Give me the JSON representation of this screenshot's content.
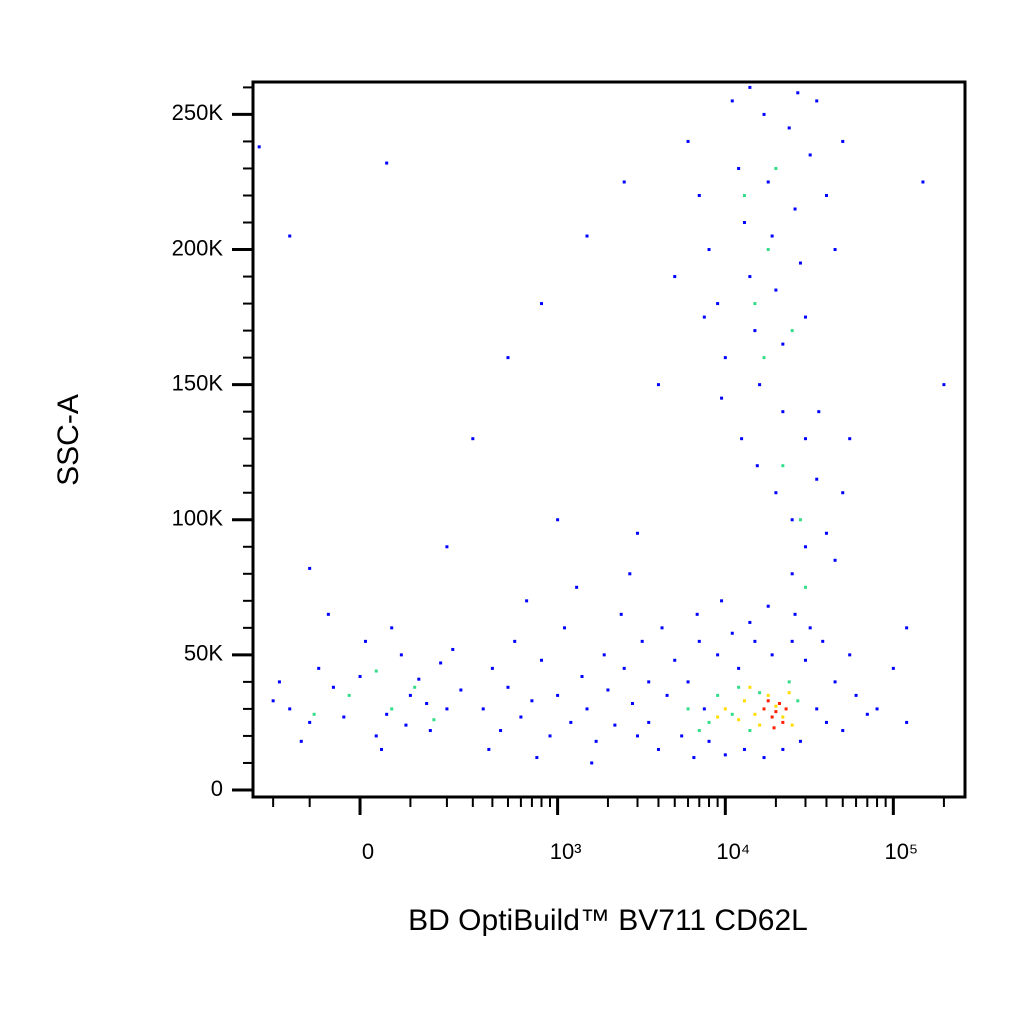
{
  "chart_data": {
    "type": "scatter",
    "x_label": "BD OptiBuild™ BV711 CD62L",
    "y_label": "SSC-A",
    "xscale": "biexponential",
    "xlim": [
      -275,
      267000
    ],
    "ylim": [
      -2600,
      262000
    ],
    "xticks": [
      0,
      {
        "value": 1000,
        "label": "10³"
      },
      {
        "value": 10000,
        "label": "10⁴"
      },
      {
        "value": 100000,
        "label": "10⁵"
      }
    ],
    "xminorticks": [
      -200,
      -100,
      100,
      200,
      300,
      400,
      500,
      600,
      700,
      800,
      900,
      2000,
      3000,
      4000,
      5000,
      6000,
      7000,
      8000,
      9000,
      20000,
      30000,
      40000,
      50000,
      60000,
      70000,
      80000,
      90000,
      200000
    ],
    "yticks": [
      0,
      {
        "value": 50000,
        "label": "50K"
      },
      {
        "value": 100000,
        "label": "100K"
      },
      {
        "value": 150000,
        "label": "150K"
      },
      {
        "value": 200000,
        "label": "200K"
      },
      {
        "value": 250000,
        "label": "250K"
      }
    ],
    "yminorticks": [
      10000,
      20000,
      30000,
      40000,
      60000,
      70000,
      80000,
      90000,
      110000,
      120000,
      130000,
      140000,
      160000,
      170000,
      180000,
      190000,
      210000,
      220000,
      230000,
      240000,
      260000
    ],
    "series": [
      {
        "color": "#0000ff",
        "x": [
          -150,
          -100,
          -50,
          0,
          50,
          100,
          150,
          -200,
          -80,
          30,
          80,
          120,
          200,
          250,
          -120,
          10,
          60,
          180,
          -30,
          90,
          -180,
          140,
          220,
          -60,
          40,
          350,
          400,
          450,
          500,
          550,
          600,
          700,
          800,
          900,
          1000,
          1100,
          1200,
          1400,
          1500,
          1700,
          1900,
          2000,
          2200,
          2500,
          2800,
          3000,
          650,
          1300,
          2400,
          3200,
          380,
          750,
          1600,
          2700,
          3500,
          3500,
          4000,
          4500,
          5000,
          5500,
          6000,
          6500,
          7000,
          7500,
          8000,
          9000,
          10000,
          11000,
          12000,
          13000,
          15000,
          17000,
          19000,
          22000,
          25000,
          28000,
          30000,
          35000,
          40000,
          45000,
          50000,
          60000,
          70000,
          4200,
          6800,
          9500,
          14000,
          18000,
          26000,
          32000,
          55000,
          80000,
          100000,
          120000,
          38000,
          6000,
          7000,
          8000,
          9000,
          10000,
          11000,
          12000,
          13000,
          14000,
          15000,
          16000,
          17000,
          18000,
          19000,
          20000,
          22000,
          24000,
          26000,
          28000,
          30000,
          32000,
          35000,
          40000,
          45000,
          50000,
          7500,
          9500,
          12500,
          15500,
          20000,
          25000,
          30000,
          35000,
          40000,
          45000,
          25000,
          30000,
          22000,
          36000,
          50000,
          55000,
          5000,
          4000,
          14000,
          27000,
          -250,
          -150,
          50,
          300,
          500,
          800,
          1500,
          2500,
          3000,
          -100,
          200,
          1000,
          150000,
          200000,
          120000
        ],
        "values": [
          30000,
          25000,
          38000,
          42000,
          28000,
          35000,
          22000,
          33000,
          45000,
          20000,
          50000,
          41000,
          30000,
          37000,
          18000,
          55000,
          60000,
          47000,
          27000,
          24000,
          40000,
          32000,
          52000,
          65000,
          15000,
          30000,
          45000,
          22000,
          38000,
          55000,
          27000,
          33000,
          48000,
          20000,
          35000,
          60000,
          25000,
          42000,
          30000,
          18000,
          50000,
          37000,
          24000,
          45000,
          32000,
          20000,
          70000,
          75000,
          65000,
          55000,
          15000,
          12000,
          10000,
          80000,
          40000,
          25000,
          15000,
          35000,
          48000,
          20000,
          40000,
          12000,
          55000,
          30000,
          18000,
          50000,
          13000,
          58000,
          45000,
          15000,
          55000,
          12000,
          50000,
          15000,
          55000,
          18000,
          48000,
          30000,
          25000,
          40000,
          22000,
          35000,
          28000,
          60000,
          65000,
          70000,
          62000,
          68000,
          65000,
          60000,
          50000,
          30000,
          45000,
          25000,
          55000,
          240000,
          220000,
          200000,
          180000,
          160000,
          255000,
          230000,
          210000,
          190000,
          170000,
          150000,
          250000,
          225000,
          205000,
          185000,
          165000,
          245000,
          215000,
          195000,
          175000,
          235000,
          255000,
          220000,
          200000,
          240000,
          175000,
          145000,
          130000,
          120000,
          110000,
          100000,
          130000,
          115000,
          95000,
          85000,
          80000,
          90000,
          140000,
          140000,
          110000,
          130000,
          190000,
          150000,
          260000,
          258000,
          238000,
          205000,
          232000,
          130000,
          160000,
          180000,
          205000,
          225000,
          95000,
          82000,
          90000,
          100000,
          225000,
          150000,
          60000
        ]
      },
      {
        "color": "#33dd88",
        "x": [
          -20,
          60,
          110,
          -90,
          30,
          160,
          6000,
          8000,
          9000,
          11000,
          12000,
          14000,
          16000,
          24000,
          27000,
          7000,
          13000,
          15000,
          18000,
          20000,
          25000,
          17000,
          28000,
          30000,
          22000
        ],
        "values": [
          35000,
          30000,
          38000,
          28000,
          44000,
          26000,
          30000,
          25000,
          35000,
          28000,
          38000,
          22000,
          36000,
          40000,
          33000,
          22000,
          220000,
          180000,
          200000,
          230000,
          170000,
          160000,
          100000,
          75000,
          120000
        ]
      },
      {
        "color": "#ffdd00",
        "x": [
          10000,
          12000,
          13000,
          15000,
          16000,
          18000,
          20000,
          22000,
          24000,
          9000,
          25000,
          14000
        ],
        "values": [
          30000,
          26000,
          33000,
          28000,
          24000,
          35000,
          31000,
          27000,
          36000,
          27000,
          24000,
          38000
        ]
      },
      {
        "color": "#ff2000",
        "x": [
          17000,
          19000,
          20000,
          21000,
          22000,
          18000,
          23000,
          19500
        ],
        "values": [
          30000,
          27000,
          29000,
          32000,
          25000,
          33000,
          30000,
          23000
        ]
      }
    ]
  }
}
